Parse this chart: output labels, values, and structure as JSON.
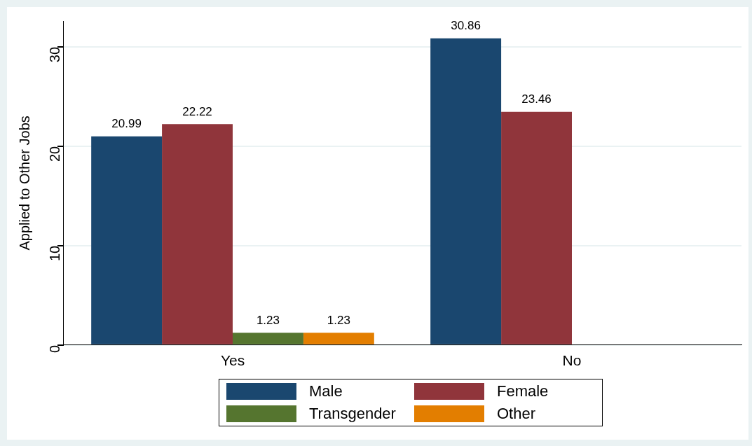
{
  "chart_data": {
    "type": "bar",
    "ylabel": "Applied to Other Jobs",
    "categories": [
      "Yes",
      "No"
    ],
    "series": [
      {
        "name": "Male",
        "color": "#1a476f",
        "values": [
          20.99,
          30.86
        ]
      },
      {
        "name": "Female",
        "color": "#90353b",
        "values": [
          22.22,
          23.46
        ]
      },
      {
        "name": "Transgender",
        "color": "#55752f",
        "values": [
          1.23,
          null
        ]
      },
      {
        "name": "Other",
        "color": "#e37e00",
        "values": [
          1.23,
          null
        ]
      }
    ],
    "ylim": [
      0,
      32.6
    ],
    "yticks": [
      0,
      10,
      20,
      30
    ],
    "grid": "y",
    "legend": "bottom",
    "data_labels": true
  }
}
